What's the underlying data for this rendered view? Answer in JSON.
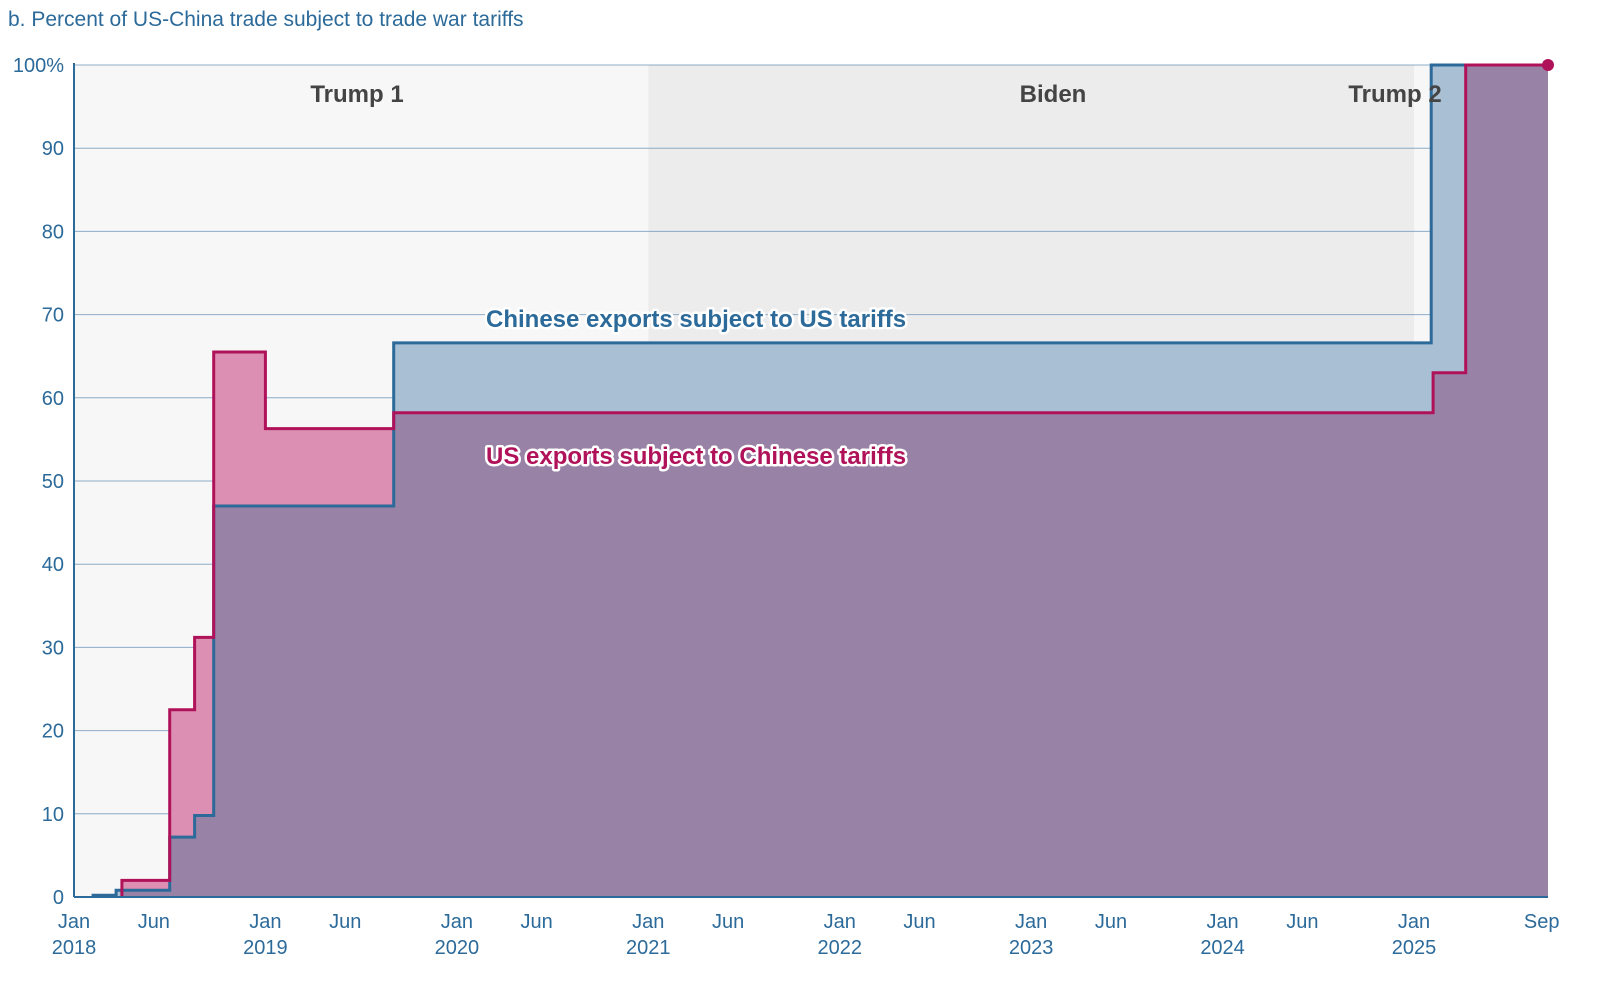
{
  "chart_data": {
    "type": "area",
    "title": "b. Percent of US-China trade subject to trade war tariffs",
    "xlabel": "",
    "ylabel": "",
    "xlim": [
      2018.0,
      2025.7
    ],
    "ylim": [
      0,
      100
    ],
    "y_ticks": [
      {
        "value": 0,
        "label": "0"
      },
      {
        "value": 10,
        "label": "10"
      },
      {
        "value": 20,
        "label": "20"
      },
      {
        "value": 30,
        "label": "30"
      },
      {
        "value": 40,
        "label": "40"
      },
      {
        "value": 50,
        "label": "50"
      },
      {
        "value": 60,
        "label": "60"
      },
      {
        "value": 70,
        "label": "70"
      },
      {
        "value": 80,
        "label": "80"
      },
      {
        "value": 90,
        "label": "90"
      },
      {
        "value": 100,
        "label": "100%"
      }
    ],
    "x_ticks": [
      {
        "value": 2018.0,
        "label": "Jan",
        "sublabel": "2018"
      },
      {
        "value": 2018.417,
        "label": "Jun",
        "sublabel": ""
      },
      {
        "value": 2019.0,
        "label": "Jan",
        "sublabel": "2019"
      },
      {
        "value": 2019.417,
        "label": "Jun",
        "sublabel": ""
      },
      {
        "value": 2020.0,
        "label": "Jan",
        "sublabel": "2020"
      },
      {
        "value": 2020.417,
        "label": "Jun",
        "sublabel": ""
      },
      {
        "value": 2021.0,
        "label": "Jan",
        "sublabel": "2021"
      },
      {
        "value": 2021.417,
        "label": "Jun",
        "sublabel": ""
      },
      {
        "value": 2022.0,
        "label": "Jan",
        "sublabel": "2022"
      },
      {
        "value": 2022.417,
        "label": "Jun",
        "sublabel": ""
      },
      {
        "value": 2023.0,
        "label": "Jan",
        "sublabel": "2023"
      },
      {
        "value": 2023.417,
        "label": "Jun",
        "sublabel": ""
      },
      {
        "value": 2024.0,
        "label": "Jan",
        "sublabel": "2024"
      },
      {
        "value": 2024.417,
        "label": "Jun",
        "sublabel": ""
      },
      {
        "value": 2025.0,
        "label": "Jan",
        "sublabel": "2025"
      },
      {
        "value": 2025.667,
        "label": "Sep",
        "sublabel": ""
      }
    ],
    "eras": [
      {
        "name": "Trump 1",
        "start": 2018.0,
        "end": 2021.0,
        "color": "#f7f7f7"
      },
      {
        "name": "Biden",
        "start": 2021.0,
        "end": 2025.0,
        "color": "#ececec"
      },
      {
        "name": "Trump 2",
        "start": 2025.0,
        "end": 2025.7,
        "color": "#f7f7f7"
      }
    ],
    "series": [
      {
        "name": "Chinese exports subject to US tariffs",
        "color": "#2c6a9a",
        "fill": "#a9bfd4",
        "step_points": [
          [
            2018.1,
            0.2
          ],
          [
            2018.22,
            0.8
          ],
          [
            2018.5,
            7.2
          ],
          [
            2018.63,
            9.8
          ],
          [
            2018.73,
            47.0
          ],
          [
            2019.67,
            66.6
          ],
          [
            2025.09,
            100
          ]
        ]
      },
      {
        "name": "US exports subject to Chinese tariffs",
        "color": "#b0125a",
        "fill": "#dc8fb2",
        "step_points": [
          [
            2018.25,
            2.0
          ],
          [
            2018.5,
            22.5
          ],
          [
            2018.63,
            31.2
          ],
          [
            2018.73,
            65.5
          ],
          [
            2019.0,
            56.3
          ],
          [
            2019.67,
            58.2
          ],
          [
            2025.1,
            63.0
          ],
          [
            2025.27,
            100
          ]
        ],
        "end_marker_value": 100
      }
    ],
    "overlap_fill": "#9882a6"
  }
}
